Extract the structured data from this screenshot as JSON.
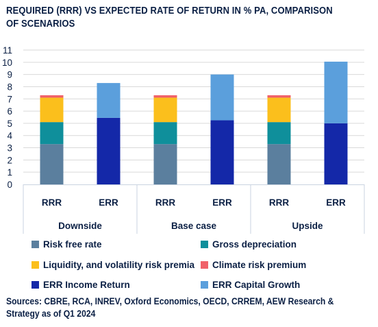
{
  "title": "REQUIRED (RRR) VS EXPECTED RATE OF RETURN IN % PA, COMPARISON OF SCENARIOS",
  "source": "Sources: CBRE, RCA, INREV, Oxford Economics, OECD, CRREM, AEW Research & Strategy as of Q1 2024",
  "colors": {
    "risk_free": "#5b7f9e",
    "gross_depreciation": "#0f8f9b",
    "liquidity": "#fbbf1c",
    "climate": "#f0626a",
    "income": "#1428a8",
    "capital": "#5b9fdc",
    "grid": "#d9d9d9",
    "text": "#0a1f44"
  },
  "chart_data": {
    "type": "bar",
    "stacked": true,
    "title": "REQUIRED (RRR) VS EXPECTED RATE OF RETURN IN % PA, COMPARISON OF SCENARIOS",
    "ylim": [
      0,
      11
    ],
    "yticks": [
      "0",
      "1",
      "2",
      "3",
      "4",
      "5",
      "6",
      "7",
      "8",
      "9",
      "10",
      "11"
    ],
    "grid": true,
    "legend_position": "bottom",
    "groups": [
      "Downside",
      "Base case",
      "Upside"
    ],
    "categories": [
      "RRR",
      "ERR",
      "RRR",
      "ERR",
      "RRR",
      "ERR"
    ],
    "series": [
      {
        "name": "Risk free rate",
        "color_key": "risk_free",
        "values": [
          3.3,
          0,
          3.3,
          0,
          3.3,
          0
        ]
      },
      {
        "name": "Gross depreciation",
        "color_key": "gross_depreciation",
        "values": [
          1.8,
          0,
          1.8,
          0,
          1.8,
          0
        ]
      },
      {
        "name": "Liquidity, and volatility risk premia",
        "color_key": "liquidity",
        "values": [
          2.0,
          0,
          2.0,
          0,
          2.0,
          0
        ]
      },
      {
        "name": "Climate risk premium",
        "color_key": "climate",
        "values": [
          0.2,
          0,
          0.2,
          0,
          0.2,
          0
        ]
      },
      {
        "name": "ERR Income Return",
        "color_key": "income",
        "values": [
          0,
          5.45,
          0,
          5.25,
          0,
          5.0
        ]
      },
      {
        "name": "ERR Capital Growth",
        "color_key": "capital",
        "values": [
          0,
          2.85,
          0,
          3.75,
          0,
          5.05
        ]
      }
    ]
  }
}
